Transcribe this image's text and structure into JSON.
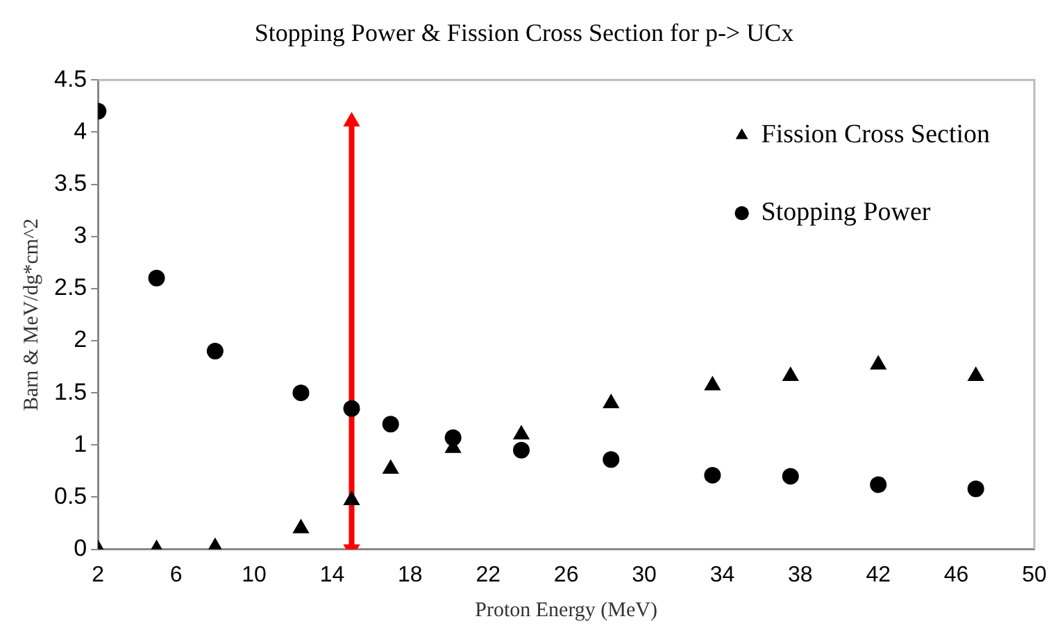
{
  "chart_data": {
    "type": "scatter",
    "title": "Stopping Power & Fission Cross Section for p-> UCx",
    "xlabel": "Proton Energy (MeV)",
    "ylabel": "Barn & MeV/dg*cm^2",
    "x": [
      2,
      5,
      8,
      12.4,
      15,
      17,
      20.2,
      23.7,
      28.3,
      33.5,
      37.5,
      42,
      47
    ],
    "series": [
      {
        "name": "Fission Cross Section",
        "color": "#000000",
        "marker": "triangle",
        "values": [
          0,
          0,
          0.02,
          0.2,
          0.47,
          0.77,
          0.97,
          1.1,
          1.4,
          1.57,
          1.66,
          1.77,
          1.66
        ]
      },
      {
        "name": "Stopping Power",
        "color": "#000000",
        "marker": "circle",
        "values": [
          4.2,
          2.6,
          1.9,
          1.5,
          1.35,
          1.2,
          1.07,
          0.95,
          0.86,
          0.71,
          0.7,
          0.62,
          0.58
        ]
      },
      {
        "type": "line",
        "color": "#ff0000",
        "marker": "triangle",
        "x": [
          15,
          15
        ],
        "values": [
          0,
          4.1
        ]
      }
    ],
    "xlim": [
      2,
      50
    ],
    "xticks": [
      2,
      6,
      10,
      14,
      18,
      22,
      26,
      30,
      34,
      38,
      42,
      46,
      50
    ],
    "ylim": [
      0,
      4.5
    ],
    "yticks": [
      0,
      0.5,
      1,
      1.5,
      2,
      2.5,
      3,
      3.5,
      4,
      4.5
    ],
    "grid": false,
    "legend": "top right"
  }
}
